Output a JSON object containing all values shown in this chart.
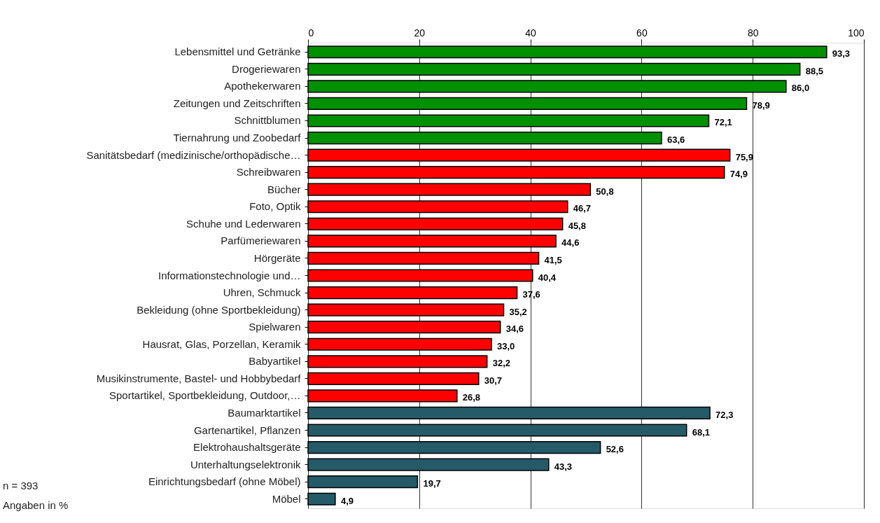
{
  "chart_data": {
    "type": "bar",
    "orientation": "horizontal",
    "categories": [
      "Lebensmittel und Getränke",
      "Drogeriewaren",
      "Apothekerwaren",
      "Zeitungen und Zeitschriften",
      "Schnittblumen",
      "Tiernahrung und Zoobedarf",
      "Sanitätsbedarf (medizinische/orthopädische…",
      "Schreibwaren",
      "Bücher",
      "Foto, Optik",
      "Schuhe und Lederwaren",
      "Parfümeriewaren",
      "Hörgeräte",
      "Informationstechnologie und…",
      "Uhren, Schmuck",
      "Bekleidung (ohne Sportbekleidung)",
      "Spielwaren",
      "Hausrat, Glas, Porzellan, Keramik",
      "Babyartikel",
      "Musikinstrumente, Bastel- und Hobbybedarf",
      "Sportartikel, Sportbekleidung, Outdoor,…",
      "Baumarktartikel",
      "Gartenartikel, Pflanzen",
      "Elektrohaushaltsgeräte",
      "Unterhaltungselektronik",
      "Einrichtungsbedarf (ohne Möbel)",
      "Möbel"
    ],
    "values": [
      93.3,
      88.5,
      86.0,
      78.9,
      72.1,
      63.6,
      75.9,
      74.9,
      50.8,
      46.7,
      45.8,
      44.6,
      41.5,
      40.4,
      37.6,
      35.2,
      34.6,
      33.0,
      32.2,
      30.7,
      26.8,
      72.3,
      68.1,
      52.6,
      43.3,
      19.7,
      4.9
    ],
    "value_labels": [
      "93,3",
      "88,5",
      "86,0",
      "78,9",
      "72,1",
      "63,6",
      "75,9",
      "74,9",
      "50,8",
      "46,7",
      "45,8",
      "44,6",
      "41,5",
      "40,4",
      "37,6",
      "35,2",
      "34,6",
      "33,0",
      "32,2",
      "30,7",
      "26,8",
      "72,3",
      "68,1",
      "52,6",
      "43,3",
      "19,7",
      "4,9"
    ],
    "colors": [
      "#009000",
      "#009000",
      "#009000",
      "#009000",
      "#009000",
      "#009000",
      "#ff0000",
      "#ff0000",
      "#ff0000",
      "#ff0000",
      "#ff0000",
      "#ff0000",
      "#ff0000",
      "#ff0000",
      "#ff0000",
      "#ff0000",
      "#ff0000",
      "#ff0000",
      "#ff0000",
      "#ff0000",
      "#ff0000",
      "#255a68",
      "#255a68",
      "#255a68",
      "#255a68",
      "#255a68",
      "#255a68"
    ],
    "xlim": [
      0,
      100
    ],
    "xticks": [
      0,
      20,
      40,
      60,
      80,
      100
    ],
    "grid": "x",
    "annotations": [
      "n = 393",
      "Angaben in %"
    ]
  }
}
